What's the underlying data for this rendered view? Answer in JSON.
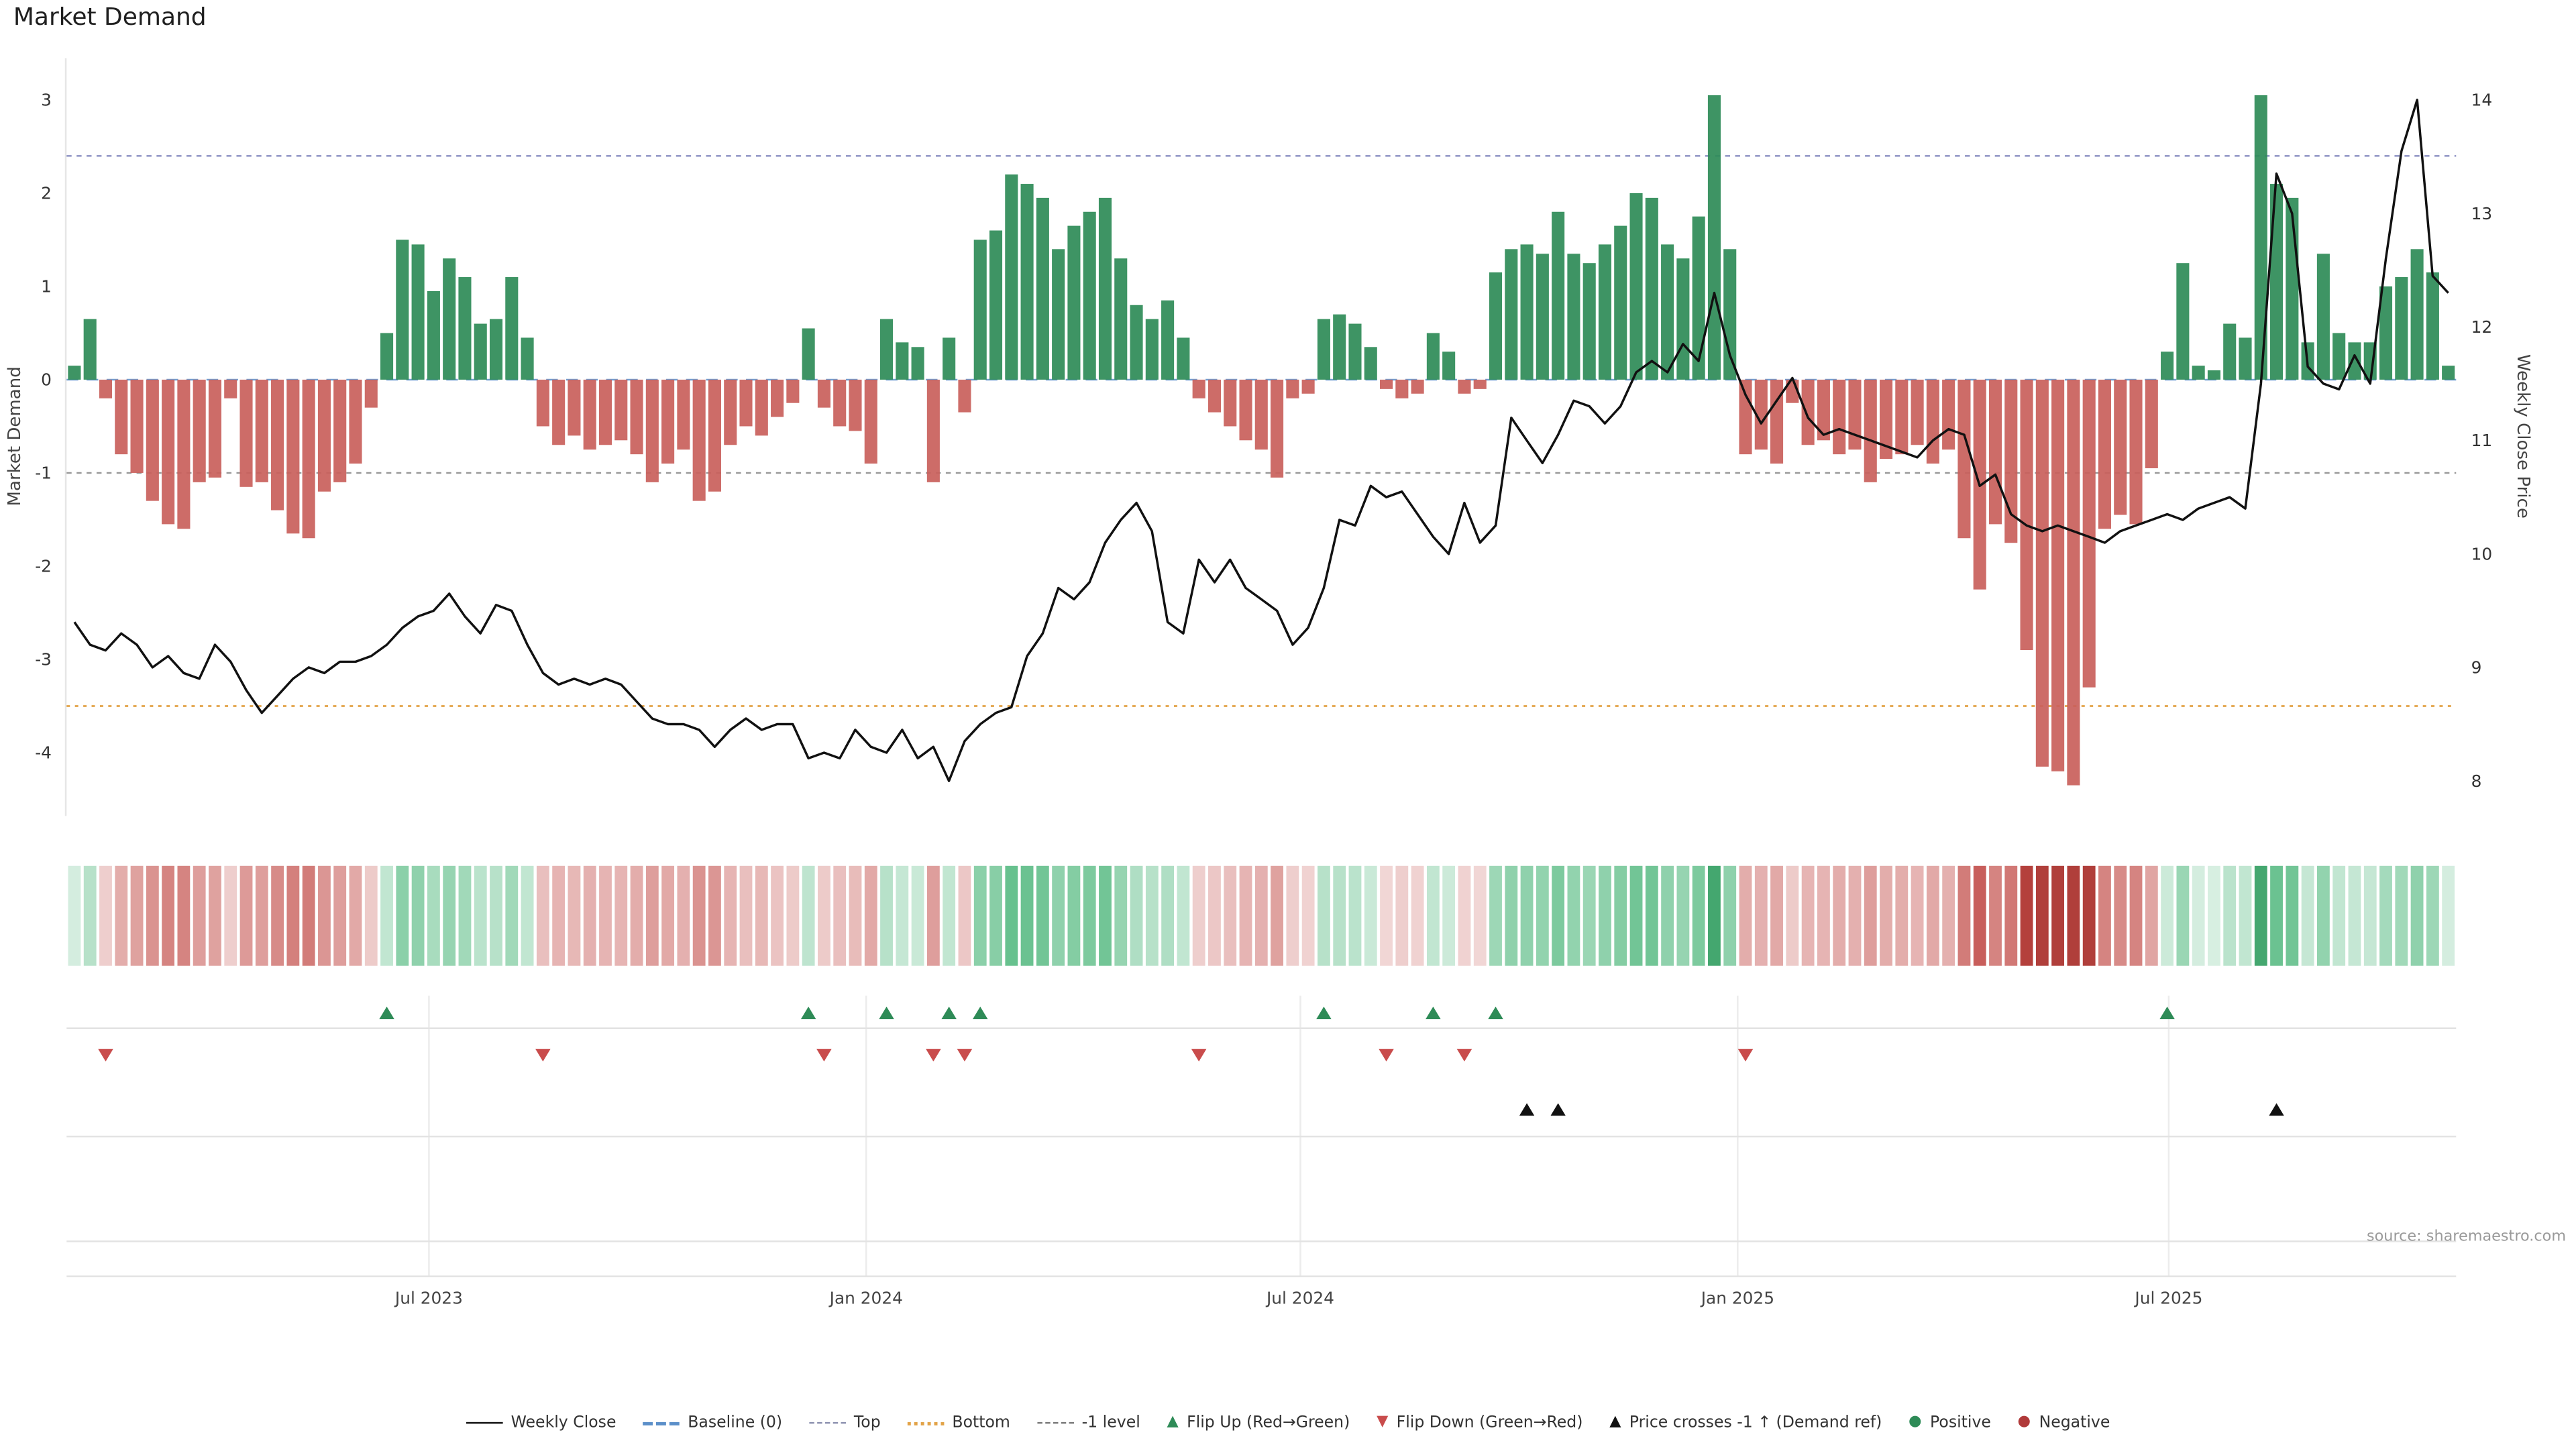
{
  "title": "Market Demand",
  "source": "source: sharemaestro.com",
  "left_axis": {
    "label": "Market Demand",
    "ticks": [
      3,
      2,
      1,
      0,
      -1,
      -2,
      -3,
      -4
    ]
  },
  "right_axis": {
    "label": "Weekly Close Price",
    "ticks": [
      14,
      13,
      12,
      11,
      10,
      9,
      8
    ]
  },
  "x_axis": {
    "ticks": [
      {
        "label": "Jul 2023",
        "index": 23.2
      },
      {
        "label": "Jan 2024",
        "index": 51.2
      },
      {
        "label": "Jul 2024",
        "index": 79.0
      },
      {
        "label": "Jan 2025",
        "index": 107.0
      },
      {
        "label": "Jul 2025",
        "index": 134.6
      }
    ]
  },
  "colors": {
    "positive": "#2e8b57",
    "negative": "#c9605b",
    "price_line": "#111111",
    "baseline": "#5b8fc9",
    "top_line": "#8f93c4",
    "bottom_line": "#e2a348",
    "minus1_line": "#9a9a9a",
    "flip_up": "#2e8b57",
    "flip_down": "#c94c4c",
    "price_cross": "#111111"
  },
  "chart_data": {
    "type": "bar+line",
    "title": "Market Demand",
    "xlabel": "",
    "ylabel_left": "Market Demand",
    "ylabel_right": "Weekly Close Price",
    "ylim_left": [
      -4.6,
      3.3
    ],
    "ylim_right": [
      7.9,
      14.2
    ],
    "ref_lines": {
      "baseline": 0,
      "top": 2.4,
      "bottom": -3.5,
      "minus1": -1
    },
    "series": [
      {
        "name": "Market Demand",
        "type": "bar",
        "axis": "left",
        "values": [
          0.15,
          0.65,
          -0.2,
          -0.8,
          -1.0,
          -1.3,
          -1.55,
          -1.6,
          -1.1,
          -1.05,
          -0.2,
          -1.15,
          -1.1,
          -1.4,
          -1.65,
          -1.7,
          -1.2,
          -1.1,
          -0.9,
          -0.3,
          0.5,
          1.5,
          1.45,
          0.95,
          1.3,
          1.1,
          0.6,
          0.65,
          1.1,
          0.45,
          -0.5,
          -0.7,
          -0.6,
          -0.75,
          -0.7,
          -0.65,
          -0.8,
          -1.1,
          -0.9,
          -0.75,
          -1.3,
          -1.2,
          -0.7,
          -0.5,
          -0.6,
          -0.4,
          -0.25,
          0.55,
          -0.3,
          -0.5,
          -0.55,
          -0.9,
          0.65,
          0.4,
          0.35,
          -1.1,
          0.45,
          -0.35,
          1.5,
          1.6,
          2.2,
          2.1,
          1.95,
          1.4,
          1.65,
          1.8,
          1.95,
          1.3,
          0.8,
          0.65,
          0.85,
          0.45,
          -0.2,
          -0.35,
          -0.5,
          -0.65,
          -0.75,
          -1.05,
          -0.2,
          -0.15,
          0.65,
          0.7,
          0.6,
          0.35,
          -0.1,
          -0.2,
          -0.15,
          0.5,
          0.3,
          -0.15,
          -0.1,
          1.15,
          1.4,
          1.45,
          1.35,
          1.8,
          1.35,
          1.25,
          1.45,
          1.65,
          2.0,
          1.95,
          1.45,
          1.3,
          1.75,
          3.05,
          1.4,
          -0.8,
          -0.75,
          -0.9,
          -0.25,
          -0.7,
          -0.65,
          -0.8,
          -0.75,
          -1.1,
          -0.85,
          -0.8,
          -0.7,
          -0.9,
          -0.75,
          -1.7,
          -2.25,
          -1.55,
          -1.75,
          -2.9,
          -4.15,
          -4.2,
          -4.35,
          -3.3,
          -1.6,
          -1.45,
          -1.55,
          -0.95,
          0.3,
          1.25,
          0.15,
          0.1,
          0.6,
          0.45,
          3.05,
          2.1,
          1.95,
          0.4,
          1.35,
          0.5,
          0.4,
          0.4,
          1.0,
          1.1,
          1.4,
          1.15,
          0.15
        ]
      },
      {
        "name": "Weekly Close",
        "type": "line",
        "axis": "right",
        "values": [
          9.4,
          9.2,
          9.15,
          9.3,
          9.2,
          9.0,
          9.1,
          8.95,
          8.9,
          9.2,
          9.05,
          8.8,
          8.6,
          8.75,
          8.9,
          9.0,
          8.95,
          9.05,
          9.05,
          9.1,
          9.2,
          9.35,
          9.45,
          9.5,
          9.65,
          9.45,
          9.3,
          9.55,
          9.5,
          9.2,
          8.95,
          8.85,
          8.9,
          8.85,
          8.9,
          8.85,
          8.7,
          8.55,
          8.5,
          8.5,
          8.45,
          8.3,
          8.45,
          8.55,
          8.45,
          8.5,
          8.5,
          8.2,
          8.25,
          8.2,
          8.45,
          8.3,
          8.25,
          8.45,
          8.2,
          8.3,
          8.0,
          8.35,
          8.5,
          8.6,
          8.65,
          9.1,
          9.3,
          9.7,
          9.6,
          9.75,
          10.1,
          10.3,
          10.45,
          10.2,
          9.4,
          9.3,
          9.95,
          9.75,
          9.95,
          9.7,
          9.6,
          9.5,
          9.2,
          9.35,
          9.7,
          10.3,
          10.25,
          10.6,
          10.5,
          10.55,
          10.35,
          10.15,
          10.0,
          10.45,
          10.1,
          10.25,
          11.2,
          11.0,
          10.8,
          11.05,
          11.35,
          11.3,
          11.15,
          11.3,
          11.6,
          11.7,
          11.6,
          11.85,
          11.7,
          12.3,
          11.75,
          11.4,
          11.15,
          11.35,
          11.55,
          11.2,
          11.05,
          11.1,
          11.05,
          11.0,
          10.95,
          10.9,
          10.85,
          11.0,
          11.1,
          11.05,
          10.6,
          10.7,
          10.35,
          10.25,
          10.2,
          10.25,
          10.2,
          10.15,
          10.1,
          10.2,
          10.25,
          10.3,
          10.35,
          10.3,
          10.4,
          10.45,
          10.5,
          10.4,
          11.5,
          13.35,
          13.0,
          11.65,
          11.5,
          11.45,
          11.75,
          11.5,
          12.6,
          13.55,
          14.0,
          12.45,
          12.3
        ]
      }
    ],
    "markers": {
      "flip_up": [
        20,
        47,
        52,
        56,
        58,
        80,
        87,
        91,
        134
      ],
      "flip_down": [
        2,
        30,
        48,
        55,
        57,
        72,
        84,
        89,
        107
      ],
      "price_cross_up": [
        93,
        95,
        141
      ]
    }
  },
  "legend": [
    {
      "label": "Weekly Close",
      "swatch": "line",
      "color": "#111111"
    },
    {
      "label": "Baseline (0)",
      "swatch": "dash-long",
      "color": "#5b8fc9"
    },
    {
      "label": "Top",
      "swatch": "dash",
      "color": "#8a8fae"
    },
    {
      "label": "Bottom",
      "swatch": "dots",
      "color": "#e2a348"
    },
    {
      "label": "-1 level",
      "swatch": "dash",
      "color": "#777777"
    },
    {
      "label": "Flip Up (Red→Green)",
      "swatch": "tri-up",
      "color": "#2e8b57"
    },
    {
      "label": "Flip Down (Green→Red)",
      "swatch": "tri-down",
      "color": "#c94c4c"
    },
    {
      "label": "Price crosses -1 ↑ (Demand ref)",
      "swatch": "tri-up",
      "color": "#111111"
    },
    {
      "label": "Positive",
      "swatch": "dot",
      "color": "#2e8b57"
    },
    {
      "label": "Negative",
      "swatch": "dot",
      "color": "#b03a3a"
    }
  ]
}
